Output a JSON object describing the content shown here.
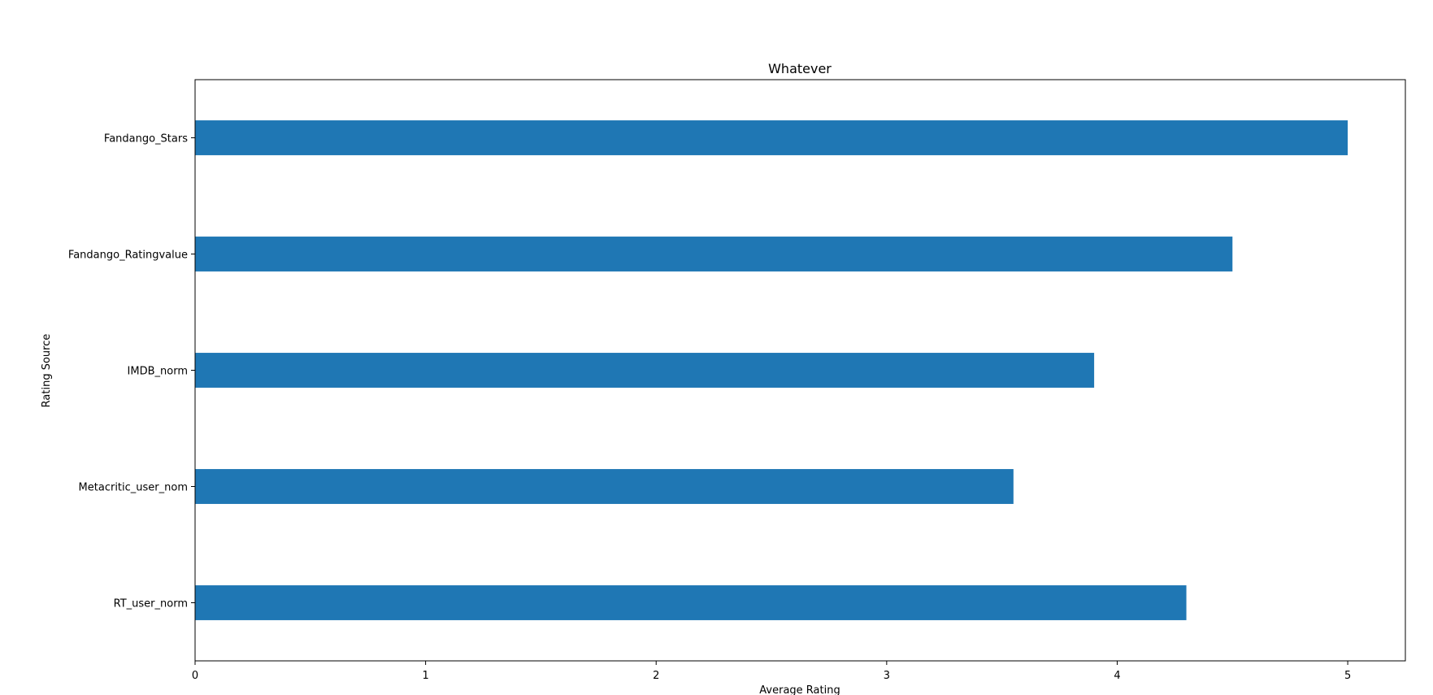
{
  "chart_data": {
    "type": "bar",
    "orientation": "horizontal",
    "title": "Whatever",
    "xlabel": "Average Rating",
    "ylabel": "Rating Source",
    "categories": [
      "RT_user_norm",
      "Metacritic_user_nom",
      "IMDB_norm",
      "Fandango_Ratingvalue",
      "Fandango_Stars"
    ],
    "values": [
      4.3,
      3.55,
      3.9,
      4.5,
      5.0
    ],
    "xlim": [
      0,
      5.25
    ],
    "xticks": [
      0,
      1,
      2,
      3,
      4,
      5
    ],
    "grid": false,
    "bar_color": "#1f77b4"
  }
}
